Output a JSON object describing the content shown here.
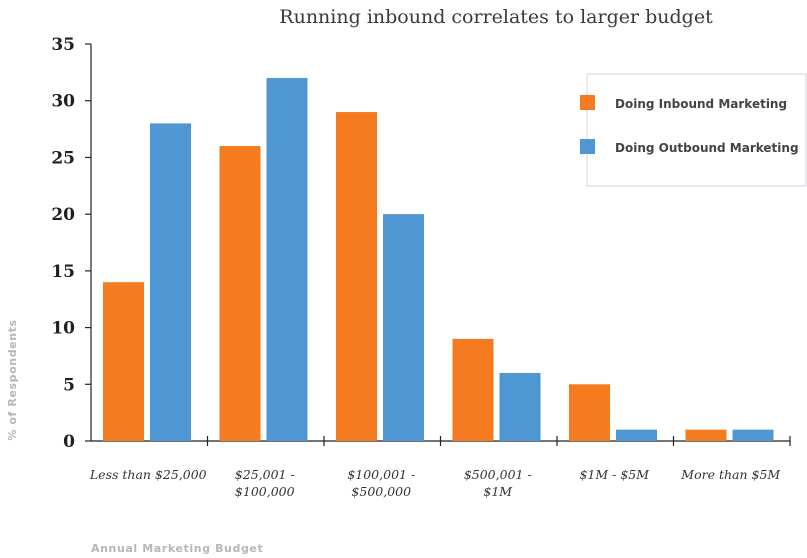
{
  "chart_data": {
    "type": "bar",
    "title": "Running inbound correlates to larger budget",
    "xlabel": "Annual Marketing Budget",
    "ylabel": "% of Respondents",
    "ylim": [
      0,
      35
    ],
    "yticks": [
      "0",
      "5",
      "10",
      "15",
      "20",
      "25",
      "30",
      "35"
    ],
    "grid": false,
    "legend_position": "top-right",
    "categories": [
      [
        "Less than $25,000"
      ],
      [
        "$25,001 -",
        "$100,000"
      ],
      [
        "$100,001 -",
        "$500,000"
      ],
      [
        "$500,001 -",
        "$1M"
      ],
      [
        "$1M - $5M"
      ],
      [
        "More than $5M"
      ]
    ],
    "series": [
      {
        "name": "Doing Inbound Marketing",
        "color": "#f47b20",
        "values": [
          14,
          26,
          29,
          9,
          5,
          1
        ]
      },
      {
        "name": "Doing Outbound Marketing",
        "color": "#4f97d3",
        "values": [
          28,
          32,
          20,
          6,
          1,
          1
        ]
      }
    ]
  }
}
